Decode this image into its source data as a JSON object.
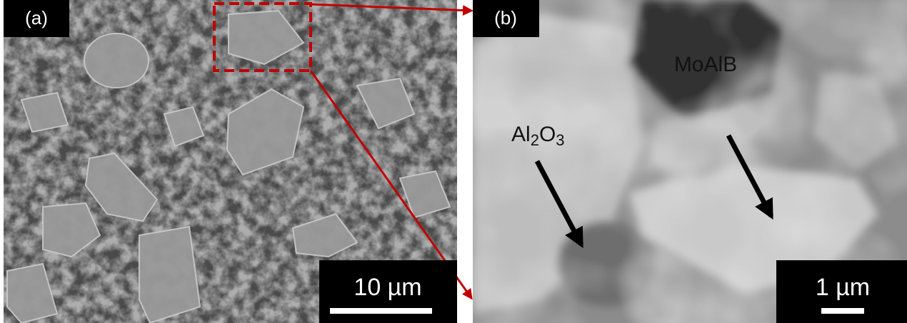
{
  "panels": [
    {
      "label": "(a)",
      "scale_bar": "10 µm"
    },
    {
      "label": "(b)",
      "scale_bar": "1 µm",
      "annotations": [
        "MoAlB",
        "Al2O3"
      ]
    }
  ]
}
